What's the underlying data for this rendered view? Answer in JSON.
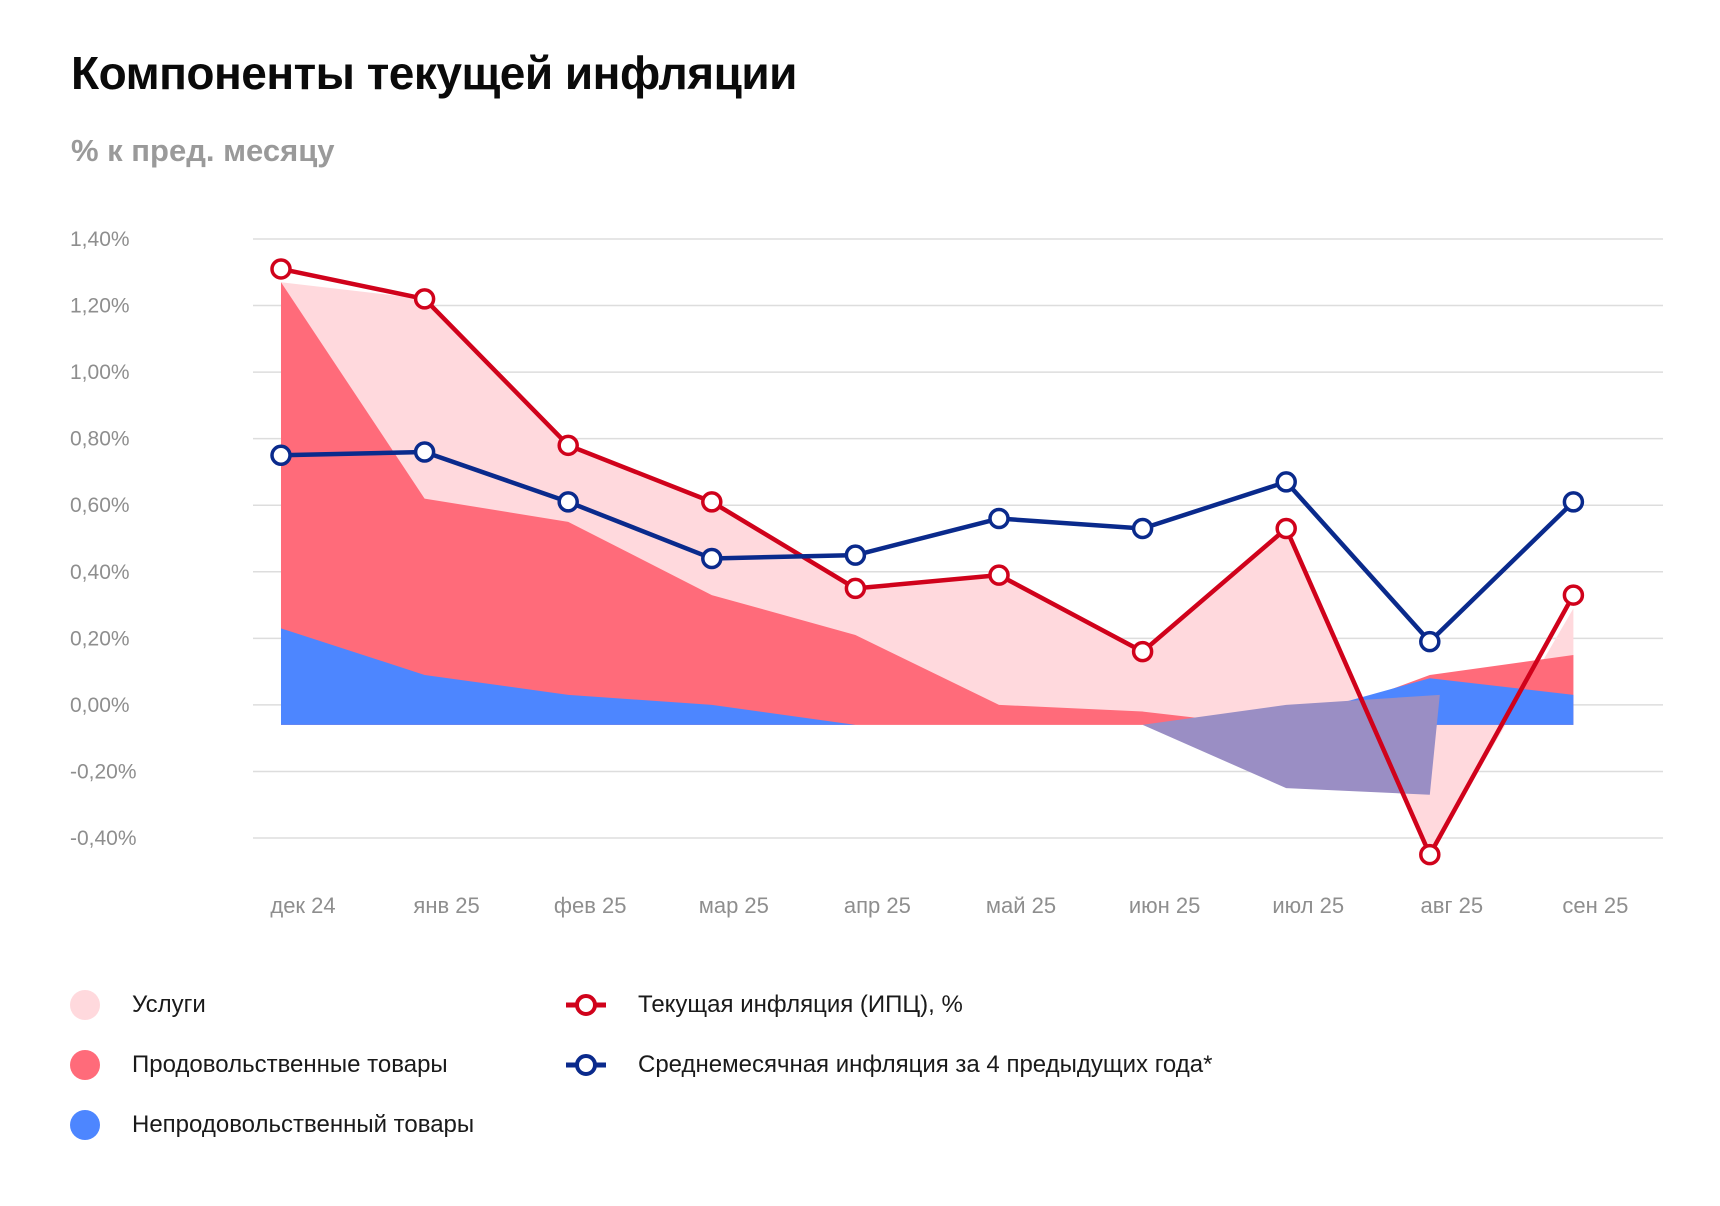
{
  "title": "Компоненты текущей инфляции",
  "subtitle": "% к пред. месяцу",
  "colors": {
    "services": "#ffd9dd",
    "food": "#ff6b7a",
    "nonfood": "#4d86ff",
    "overlap": "#9a8ec4",
    "cpi": "#d0021b",
    "avg": "#0a2a8c",
    "grid": "#dddddd"
  },
  "legend": {
    "services": "Услуги",
    "food": "Продовольственные товары",
    "nonfood": "Непродовольственный товары",
    "cpi": "Текущая инфляция (ИПЦ), %",
    "avg": "Среднемесячная инфляция за 4 предыдущих года*"
  },
  "chart_data": {
    "type": "area",
    "title": "Компоненты текущей инфляции",
    "subtitle": "% к пред. месяцу",
    "categories": [
      "дек 24",
      "янв 25",
      "фев 25",
      "мар 25",
      "апр 25",
      "май 25",
      "июн 25",
      "июл 25",
      "авг 25",
      "сен 25"
    ],
    "ylim": [
      -0.4,
      1.4
    ],
    "yticks": [
      1.4,
      1.2,
      1.0,
      0.8,
      0.6,
      0.4,
      0.2,
      0.0,
      -0.2,
      -0.4
    ],
    "ytick_labels": [
      "1,40%",
      "1,20%",
      "1,00%",
      "0,80%",
      "0,60%",
      "0,40%",
      "0,20%",
      "0,00%",
      "-0,20%",
      "-0,40%"
    ],
    "grid": true,
    "area_baseline": -0.06,
    "series": [
      {
        "name": "Текущая инфляция (ИПЦ), %",
        "kind": "line",
        "color": "#d0021b",
        "values": [
          1.31,
          1.22,
          0.78,
          0.61,
          0.35,
          0.39,
          0.16,
          0.53,
          -0.45,
          0.33
        ]
      },
      {
        "name": "Среднемесячная инфляция за 4 предыдущих года*",
        "kind": "line",
        "color": "#0a2a8c",
        "values": [
          0.75,
          0.76,
          0.61,
          0.44,
          0.45,
          0.56,
          0.53,
          0.67,
          0.19,
          0.61
        ]
      },
      {
        "name": "Услуги",
        "kind": "area",
        "color": "#ffd9dd",
        "values": [
          1.27,
          1.22,
          0.78,
          0.61,
          0.35,
          0.39,
          0.16,
          0.53,
          -0.45,
          0.29
        ]
      },
      {
        "name": "Продовольственные товары",
        "kind": "area",
        "color": "#ff6b7a",
        "values": [
          1.27,
          0.62,
          0.55,
          0.33,
          0.21,
          0.0,
          -0.02,
          -0.07,
          0.09,
          0.15
        ]
      },
      {
        "name": "Непродовольственный товары",
        "kind": "area",
        "color": "#4d86ff",
        "values": [
          0.23,
          0.09,
          0.03,
          0.0,
          -0.06,
          -0.06,
          -0.06,
          -0.04,
          0.08,
          0.03
        ]
      }
    ]
  }
}
